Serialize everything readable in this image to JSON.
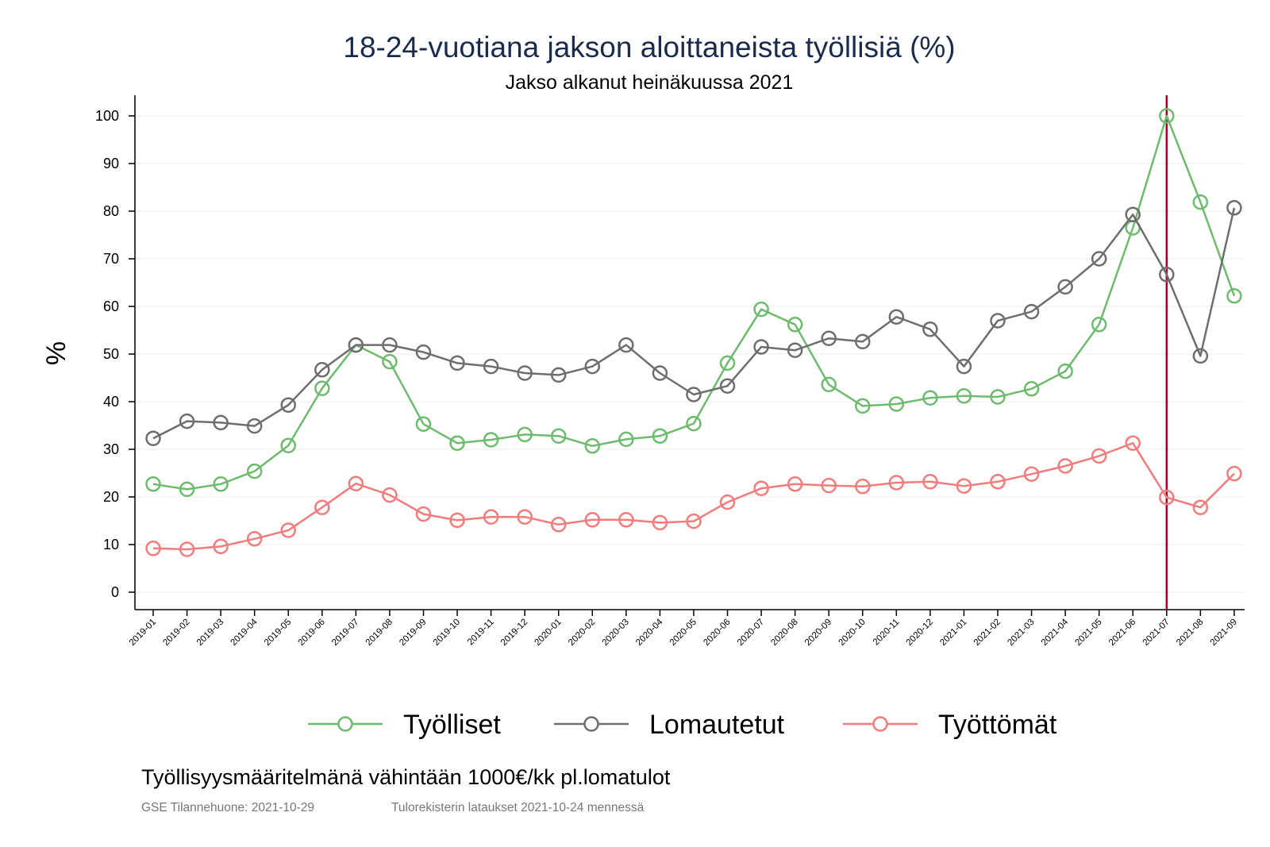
{
  "chart_data": {
    "type": "line",
    "title": "18-24-vuotiana jakson aloittaneista työllisiä (%)",
    "subtitle": "Jakso alkanut heinäkuussa 2021",
    "ylabel": "%",
    "xlabel": "",
    "ylim": [
      0,
      100
    ],
    "yticks": [
      0,
      10,
      20,
      30,
      40,
      50,
      60,
      70,
      80,
      90,
      100
    ],
    "categories": [
      "2019-01",
      "2019-02",
      "2019-03",
      "2019-04",
      "2019-05",
      "2019-06",
      "2019-07",
      "2019-08",
      "2019-09",
      "2019-10",
      "2019-11",
      "2019-12",
      "2020-01",
      "2020-02",
      "2020-03",
      "2020-04",
      "2020-05",
      "2020-06",
      "2020-07",
      "2020-08",
      "2020-09",
      "2020-10",
      "2020-11",
      "2020-12",
      "2021-01",
      "2021-02",
      "2021-03",
      "2021-04",
      "2021-05",
      "2021-06",
      "2021-07",
      "2021-08",
      "2021-09"
    ],
    "reference_line": {
      "x": "2021-07",
      "color": "#b0002a"
    },
    "series": [
      {
        "name": "Työlliset",
        "color": "#6dbb6d",
        "values": [
          22.7,
          21.6,
          22.7,
          25.4,
          30.8,
          42.8,
          51.9,
          48.4,
          35.3,
          31.3,
          32.0,
          33.1,
          32.8,
          30.7,
          32.1,
          32.8,
          35.4,
          48.1,
          59.4,
          56.2,
          43.6,
          39.1,
          39.5,
          40.8,
          41.2,
          41.0,
          42.7,
          46.4,
          56.2,
          76.5,
          100.0,
          81.9,
          62.2
        ]
      },
      {
        "name": "Lomautetut",
        "color": "#6e6e6e",
        "values": [
          32.3,
          35.9,
          35.6,
          34.9,
          39.3,
          46.7,
          51.9,
          51.9,
          50.4,
          48.1,
          47.4,
          46.0,
          45.6,
          47.4,
          51.9,
          46.0,
          41.5,
          43.3,
          51.5,
          50.8,
          53.3,
          52.6,
          57.8,
          55.2,
          47.4,
          57.0,
          58.9,
          64.1,
          70.0,
          79.3,
          66.7,
          49.6,
          80.7
        ]
      },
      {
        "name": "Työttömät",
        "color": "#f27c7c",
        "values": [
          9.2,
          9.0,
          9.6,
          11.2,
          13.0,
          17.8,
          22.8,
          20.4,
          16.4,
          15.1,
          15.8,
          15.8,
          14.2,
          15.2,
          15.2,
          14.6,
          14.9,
          18.9,
          21.8,
          22.7,
          22.4,
          22.2,
          23.0,
          23.2,
          22.3,
          23.2,
          24.8,
          26.5,
          28.6,
          31.3,
          19.9,
          17.8,
          24.9
        ]
      }
    ]
  },
  "footer": {
    "note": "Työllisyysmääritelmänä vähintään 1000€/kk pl.lomatulot",
    "source_left": "GSE Tilannehuone: 2021-10-29",
    "source_right": "Tulorekisterin lataukset 2021-10-24 mennessä"
  }
}
